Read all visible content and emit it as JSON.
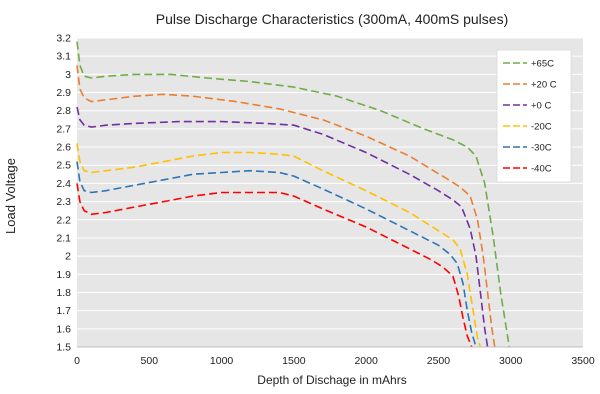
{
  "chart_data": {
    "type": "line",
    "title": "Pulse Discharge Characteristics (300mA, 400mS pulses)",
    "xlabel": "Depth of Dischage in mAhrs",
    "ylabel": "Load Voltage",
    "xlim": [
      0,
      3500
    ],
    "ylim": [
      1.5,
      3.2
    ],
    "x_ticks": [
      0,
      500,
      1000,
      1500,
      2000,
      2500,
      3000,
      3500
    ],
    "y_ticks": [
      1.5,
      1.6,
      1.7,
      1.8,
      1.9,
      2,
      2.1,
      2.2,
      2.3,
      2.4,
      2.5,
      2.6,
      2.7,
      2.8,
      2.9,
      3,
      3.1,
      3.2
    ],
    "x_tick_labels": [
      "0",
      "500",
      "1000",
      "1500",
      "2000",
      "2500",
      "3000",
      "3500"
    ],
    "y_tick_labels": [
      "1.5",
      "1.6",
      "1.7",
      "1.8",
      "1.9",
      "2",
      "2.1",
      "2.2",
      "2.3",
      "2.4",
      "2.5",
      "2.6",
      "2.7",
      "2.8",
      "2.9",
      "3",
      "3.1",
      "3.2"
    ],
    "grid": "horizontal",
    "legend_position": "top-right",
    "line_style": "dashed",
    "plot_background": "#e6e6e6",
    "series": [
      {
        "name": "+65C",
        "color": "#70ad47",
        "x": [
          0,
          20,
          50,
          100,
          200,
          400,
          650,
          900,
          1200,
          1500,
          1800,
          2100,
          2400,
          2600,
          2700,
          2760,
          2820,
          2880,
          2930,
          2970,
          2990
        ],
        "y": [
          3.18,
          3.05,
          2.99,
          2.98,
          2.99,
          3.0,
          3.0,
          2.98,
          2.96,
          2.93,
          2.88,
          2.8,
          2.7,
          2.64,
          2.6,
          2.55,
          2.4,
          2.1,
          1.8,
          1.6,
          1.5
        ]
      },
      {
        "name": "+20 C",
        "color": "#ed7d31",
        "x": [
          0,
          20,
          50,
          100,
          200,
          400,
          600,
          800,
          1100,
          1400,
          1700,
          2000,
          2300,
          2550,
          2650,
          2720,
          2770,
          2810,
          2840,
          2870,
          2890
        ],
        "y": [
          3.05,
          2.92,
          2.87,
          2.85,
          2.86,
          2.88,
          2.89,
          2.88,
          2.85,
          2.81,
          2.75,
          2.66,
          2.55,
          2.43,
          2.38,
          2.33,
          2.2,
          2.0,
          1.8,
          1.6,
          1.5
        ]
      },
      {
        "name": "+0 C",
        "color": "#7030a0",
        "x": [
          0,
          20,
          50,
          100,
          200,
          400,
          700,
          1000,
          1300,
          1500,
          1700,
          2000,
          2300,
          2500,
          2600,
          2660,
          2720,
          2760,
          2790,
          2820,
          2840
        ],
        "y": [
          2.82,
          2.75,
          2.72,
          2.71,
          2.72,
          2.73,
          2.74,
          2.74,
          2.73,
          2.72,
          2.67,
          2.57,
          2.45,
          2.36,
          2.31,
          2.27,
          2.15,
          2.0,
          1.8,
          1.6,
          1.5
        ]
      },
      {
        "name": "-20C",
        "color": "#ffc000",
        "x": [
          0,
          20,
          50,
          100,
          200,
          400,
          600,
          800,
          1000,
          1200,
          1400,
          1500,
          1700,
          2000,
          2300,
          2500,
          2600,
          2650,
          2700,
          2740,
          2770,
          2790
        ],
        "y": [
          2.62,
          2.52,
          2.47,
          2.46,
          2.47,
          2.49,
          2.52,
          2.55,
          2.57,
          2.57,
          2.56,
          2.55,
          2.47,
          2.36,
          2.24,
          2.14,
          2.09,
          2.04,
          1.9,
          1.7,
          1.55,
          1.5
        ]
      },
      {
        "name": "-30C",
        "color": "#2e75b6",
        "x": [
          0,
          20,
          50,
          100,
          200,
          400,
          600,
          800,
          1000,
          1200,
          1400,
          1500,
          1700,
          2000,
          2300,
          2500,
          2580,
          2630,
          2670,
          2700,
          2730,
          2760
        ],
        "y": [
          2.52,
          2.41,
          2.36,
          2.35,
          2.36,
          2.39,
          2.42,
          2.45,
          2.46,
          2.47,
          2.46,
          2.44,
          2.37,
          2.26,
          2.14,
          2.06,
          2.01,
          1.96,
          1.85,
          1.7,
          1.58,
          1.5
        ]
      },
      {
        "name": "-40C",
        "color": "#ff0000",
        "x": [
          0,
          20,
          50,
          100,
          200,
          400,
          600,
          800,
          1000,
          1200,
          1400,
          1500,
          1700,
          2000,
          2300,
          2450,
          2530,
          2600,
          2640,
          2670,
          2700,
          2730
        ],
        "y": [
          2.4,
          2.3,
          2.25,
          2.23,
          2.24,
          2.27,
          2.3,
          2.33,
          2.35,
          2.35,
          2.35,
          2.33,
          2.26,
          2.16,
          2.04,
          1.98,
          1.94,
          1.89,
          1.78,
          1.66,
          1.56,
          1.5
        ]
      }
    ]
  }
}
